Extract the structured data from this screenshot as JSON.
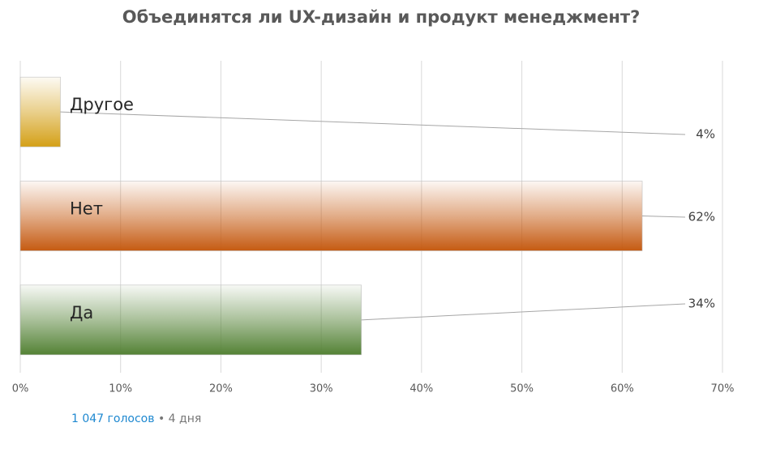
{
  "chart_data": {
    "type": "hbar",
    "title": "Объединятся ли UX-дизайн и продукт менеджмент?",
    "categories": [
      "Другое",
      "Нет",
      "Да"
    ],
    "values": [
      4,
      62,
      34
    ],
    "value_labels": [
      "4%",
      "62%",
      "34%"
    ],
    "colors": [
      "#d4a017",
      "#c55a11",
      "#548235"
    ],
    "xlim": [
      0,
      70
    ],
    "xticks": [
      {
        "value": 0,
        "label": "0%"
      },
      {
        "value": 10,
        "label": "10%"
      },
      {
        "value": 20,
        "label": "20%"
      },
      {
        "value": 30,
        "label": "30%"
      },
      {
        "value": 40,
        "label": "40%"
      },
      {
        "value": 50,
        "label": "50%"
      },
      {
        "value": 60,
        "label": "60%"
      },
      {
        "value": 70,
        "label": "70%"
      }
    ],
    "grid": true
  },
  "footer": {
    "votes": "1 047 голосов",
    "age": "4 дня"
  }
}
